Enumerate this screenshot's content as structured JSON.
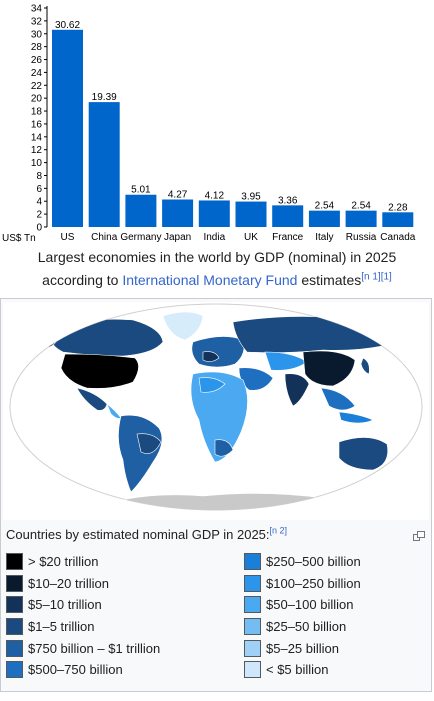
{
  "chart_data": {
    "type": "bar",
    "categories": [
      "US",
      "China",
      "Germany",
      "Japan",
      "India",
      "UK",
      "France",
      "Italy",
      "Russia",
      "Canada"
    ],
    "values": [
      30.62,
      19.39,
      5.01,
      4.27,
      4.12,
      3.95,
      3.36,
      2.54,
      2.54,
      2.28
    ],
    "value_labels": [
      "30.62",
      "19.39",
      "5.01",
      "4.27",
      "4.12",
      "3.95",
      "3.36",
      "2.54",
      "2.54",
      "2.28"
    ],
    "y_ticks": [
      "0",
      "2",
      "4",
      "6",
      "8",
      "10",
      "12",
      "14",
      "16",
      "18",
      "20",
      "22",
      "24",
      "26",
      "28",
      "30",
      "32",
      "34"
    ],
    "ylim": [
      0,
      34
    ],
    "ylabel": "US$ Tn",
    "xlabel": "",
    "title": "",
    "bar_color": "#0066cc",
    "grid": false
  },
  "chart_caption": {
    "line1": "Largest economies in the world by GDP (nominal) in 2025",
    "line2_prefix": "according to ",
    "link_text": "International Monetary Fund",
    "line2_suffix": " estimates",
    "refs": "[n 1][1]"
  },
  "map": {
    "icon": "world-map-gdp",
    "caption": "Countries by estimated nominal GDP in 2025:",
    "caption_ref": "[n 2]",
    "enlarge_icon": "enlarge-icon"
  },
  "legend": {
    "left": [
      {
        "label": "> $20 trillion",
        "color": "#000000"
      },
      {
        "label": "$10–20 trillion",
        "color": "#0a1a2e"
      },
      {
        "label": "$5–10 trillion",
        "color": "#12325a"
      },
      {
        "label": "$1–5 trillion",
        "color": "#1b4a80"
      },
      {
        "label": "$750 billion – $1 trillion",
        "color": "#1f5fa3"
      },
      {
        "label": "$500–750 billion",
        "color": "#1e6fbf"
      }
    ],
    "right": [
      {
        "label": "$250–500 billion",
        "color": "#1a7fd9"
      },
      {
        "label": "$100–250 billion",
        "color": "#2a95ea"
      },
      {
        "label": "$50–100 billion",
        "color": "#4aa9f0"
      },
      {
        "label": "$25–50 billion",
        "color": "#74bdf3"
      },
      {
        "label": "$5–25 billion",
        "color": "#9fd0f6"
      },
      {
        "label": "< $5 billion",
        "color": "#cfe6fb"
      }
    ]
  }
}
